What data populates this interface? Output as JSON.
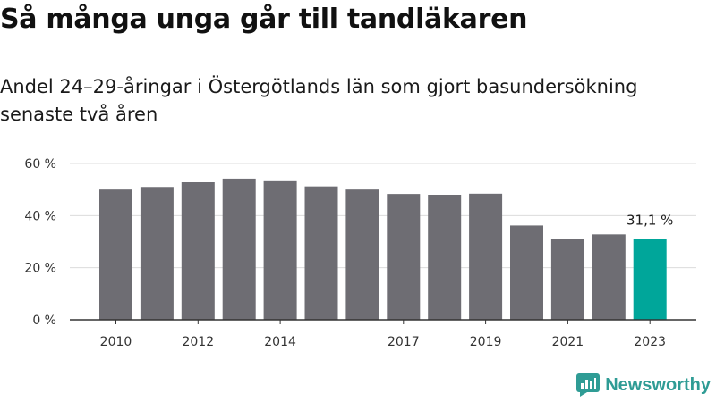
{
  "header": {
    "title": "Så många unga går till tandläkaren",
    "subtitle": "Andel 24–29-åringar i Östergötlands län som gjort basundersökning senaste två åren"
  },
  "brand": {
    "name": "Newsworthy",
    "icon": "newsworthy-logo-icon",
    "color": "#2f9c95"
  },
  "colors": {
    "bar": "#6e6d73",
    "highlight": "#00a69a",
    "grid": "#dcdcdc",
    "axis": "#333333"
  },
  "chart_data": {
    "type": "bar",
    "categories": [
      "2010",
      "2011",
      "2012",
      "2013",
      "2014",
      "2015",
      "2016",
      "2017",
      "2018",
      "2019",
      "2020",
      "2021",
      "2022",
      "2023"
    ],
    "x_tick_labels": [
      "2010",
      "",
      "2012",
      "",
      "2014",
      "",
      "",
      "2017",
      "",
      "2019",
      "",
      "2021",
      "",
      "2023"
    ],
    "values": [
      50.0,
      51.0,
      52.8,
      54.2,
      53.2,
      51.2,
      50.0,
      48.3,
      48.0,
      48.4,
      36.2,
      31.0,
      32.8,
      31.1
    ],
    "highlight_index": 13,
    "data_labels": [
      {
        "index": 13,
        "text": "31,1 %"
      }
    ],
    "y_ticks": [
      0,
      20,
      40,
      60
    ],
    "y_tick_labels": [
      "0 %",
      "20 %",
      "40 %",
      "60 %"
    ],
    "ylim": [
      0,
      60
    ],
    "xlabel": "",
    "ylabel": "",
    "grid": true,
    "legend": "none"
  }
}
